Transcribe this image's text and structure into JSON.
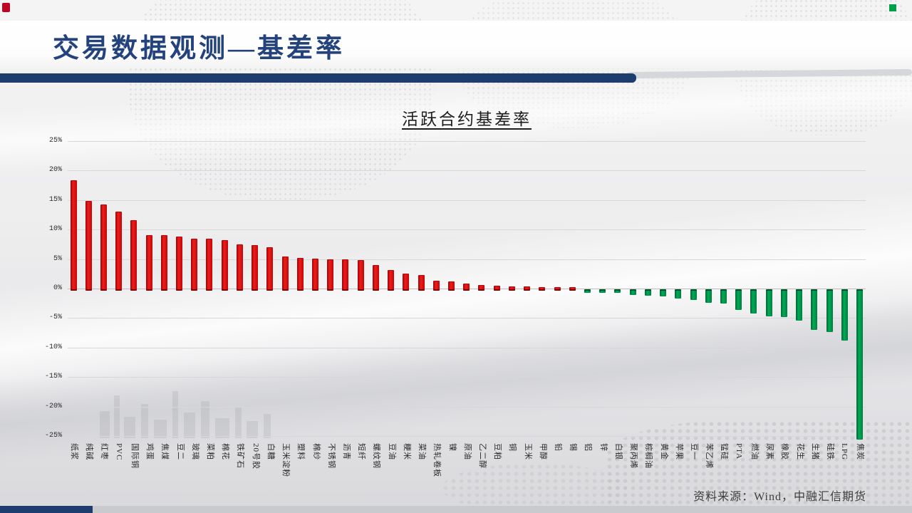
{
  "slide": {
    "header_title": "交易数据观测—基差率",
    "footer_source": "资料来源：Wind，中融汇信期货"
  },
  "colors": {
    "accent_navy": "#1e3c6e",
    "positive_bar_red": "#dd1111",
    "negative_bar_green": "#00a050",
    "background_gray": "#ececee"
  },
  "chart_data": {
    "type": "bar",
    "title": "活跃合约基差率",
    "xlabel": "",
    "ylabel": "",
    "unit": "%",
    "ylim": [
      -25,
      25
    ],
    "ytick_step": 5,
    "grid": true,
    "legend": "none",
    "yticks": [
      "25%",
      "20%",
      "15%",
      "10%",
      "5%",
      "0%",
      "-5%",
      "-10%",
      "-15%",
      "-20%",
      "-25%"
    ],
    "categories": [
      "纸浆",
      "纯碱",
      "红枣",
      "PVC",
      "国际铜",
      "鸡蛋",
      "焦煤",
      "豆二",
      "玻璃",
      "菜粕",
      "棉花",
      "铁矿石",
      "20号胶",
      "白糖",
      "玉米淀粉",
      "塑料",
      "棉纱",
      "不锈钢",
      "沥青",
      "短纤",
      "螺纹钢",
      "豆油",
      "粳米",
      "菜油",
      "热轧卷板",
      "镍",
      "原油",
      "乙二醇",
      "豆粕",
      "铜",
      "玉米",
      "甲醇",
      "铅",
      "锡",
      "铝",
      "锌",
      "白银",
      "聚丙烯",
      "棕榈油",
      "黄金",
      "苹果",
      "豆一",
      "苯乙烯",
      "锰硅",
      "PTA",
      "燃油",
      "尿素",
      "橡胶",
      "花生",
      "生猪",
      "硅铁",
      "LPG",
      "焦炭"
    ],
    "values": [
      18.3,
      14.8,
      14.2,
      13.1,
      11.6,
      9.1,
      9.0,
      8.8,
      8.5,
      8.4,
      8.2,
      7.5,
      7.4,
      7.0,
      5.4,
      5.2,
      5.1,
      5.0,
      4.9,
      4.8,
      4.0,
      3.1,
      2.5,
      2.3,
      1.3,
      1.2,
      0.9,
      0.6,
      0.45,
      0.4,
      0.35,
      0.15,
      0.1,
      0.05,
      -0.1,
      -0.2,
      -0.3,
      -0.6,
      -0.7,
      -0.9,
      -1.2,
      -1.5,
      -1.9,
      -2.0,
      -3.2,
      -3.8,
      -4.2,
      -4.3,
      -5.0,
      -6.5,
      -6.9,
      -8.3,
      -25.1
    ]
  }
}
